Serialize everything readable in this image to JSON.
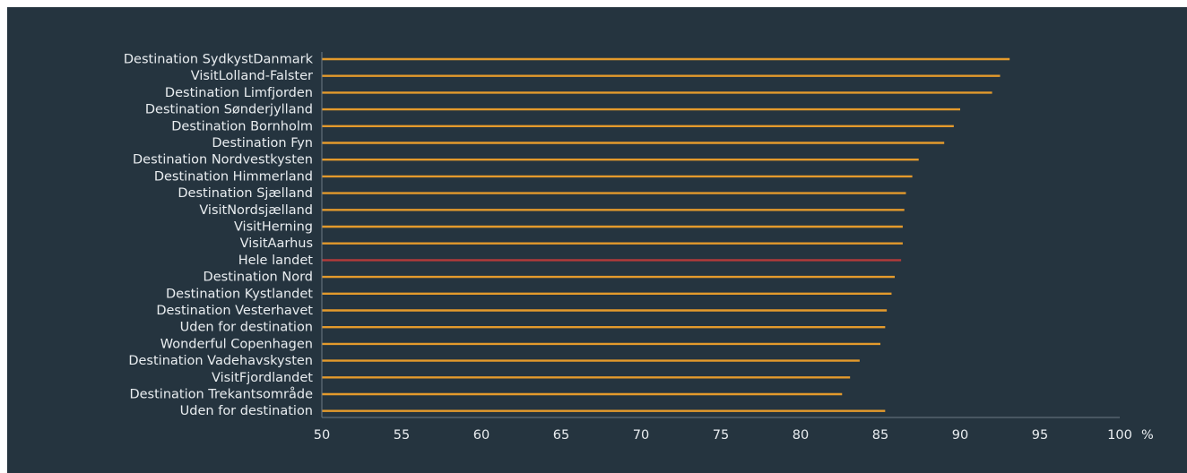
{
  "chart_data": {
    "type": "bar",
    "orientation": "horizontal",
    "title": "",
    "xlabel": "%",
    "ylabel": "",
    "xlim": [
      50,
      100
    ],
    "xticks": [
      50,
      55,
      60,
      65,
      70,
      75,
      80,
      85,
      90,
      95,
      100
    ],
    "grid": false,
    "legend": "none",
    "categories": [
      "Destination SydkystDanmark",
      "VisitLolland-Falster",
      "Destination Limfjorden",
      "Destination Sønderjylland",
      "Destination Bornholm",
      "Destination Fyn",
      "Destination Nordvestkysten",
      "Destination Himmerland",
      "Destination Sjælland",
      "VisitNordsjælland",
      "VisitHerning",
      "VisitAarhus",
      "Hele landet",
      "Destination Nord",
      "Destination Kystlandet",
      "Destination Vesterhavet",
      "Uden for destination",
      "Wonderful Copenhagen",
      "Destination Vadehavskysten",
      "VisitFjordlandet",
      "Destination Trekantsområde",
      "Uden for destination"
    ],
    "values": [
      93.1,
      92.5,
      92.0,
      90.0,
      89.6,
      89.0,
      87.4,
      87.0,
      86.6,
      86.5,
      86.4,
      86.4,
      86.3,
      85.9,
      85.7,
      85.4,
      85.3,
      85.0,
      83.7,
      83.1,
      82.6,
      85.3
    ],
    "highlight_category_index": 12,
    "colors": {
      "background": "#25343f",
      "bar": "#e49a2c",
      "highlight_bar": "#b33a3a",
      "axis": "#6d7a84",
      "text": "#e9edf0"
    }
  }
}
